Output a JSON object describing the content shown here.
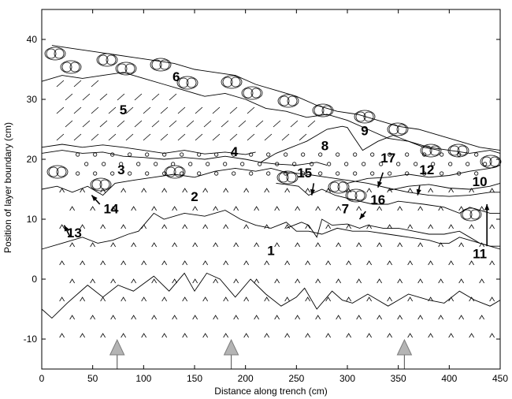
{
  "figure": {
    "xlabel": "Distance along trench (cm)",
    "ylabel": "Position of layer boundary (cm)",
    "x_ticks": [
      "0",
      "50",
      "100",
      "150",
      "200",
      "250",
      "300",
      "350",
      "400",
      "450"
    ],
    "y_ticks": [
      "-10",
      "0",
      "10",
      "20",
      "30",
      "40"
    ],
    "unit_labels": [
      {
        "text": "1",
        "x": 225,
        "y": 4
      },
      {
        "text": "2",
        "x": 150,
        "y": 13
      },
      {
        "text": "3",
        "x": 78,
        "y": 17.5
      },
      {
        "text": "4",
        "x": 189,
        "y": 20.5
      },
      {
        "text": "5",
        "x": 80,
        "y": 27.5
      },
      {
        "text": "6",
        "x": 132,
        "y": 33
      },
      {
        "text": "7",
        "x": 298,
        "y": 11
      },
      {
        "text": "8",
        "x": 278,
        "y": 21.5
      },
      {
        "text": "9",
        "x": 317,
        "y": 24
      },
      {
        "text": "10",
        "x": 430,
        "y": 15.5
      },
      {
        "text": "11",
        "x": 430,
        "y": 3.5
      },
      {
        "text": "12",
        "x": 378,
        "y": 17.5
      },
      {
        "text": "13",
        "x": 32,
        "y": 7
      },
      {
        "text": "14",
        "x": 68,
        "y": 11
      },
      {
        "text": "15",
        "x": 258,
        "y": 17
      },
      {
        "text": "16",
        "x": 330,
        "y": 12.5
      },
      {
        "text": "17",
        "x": 340,
        "y": 19.5
      }
    ],
    "arrows": [
      {
        "from": [
          28,
          7
        ],
        "to": [
          22,
          9
        ],
        "target": "13"
      },
      {
        "from": [
          57,
          12.5
        ],
        "to": [
          49,
          14
        ],
        "target": "14"
      },
      {
        "from": [
          267,
          16
        ],
        "to": [
          265,
          14
        ],
        "target": "15"
      },
      {
        "from": [
          318,
          11.3
        ],
        "to": [
          312,
          10
        ],
        "target": "16"
      },
      {
        "from": [
          335,
          17.8
        ],
        "to": [
          330,
          15.3
        ],
        "target": "17"
      },
      {
        "from": [
          371,
          15.6
        ],
        "to": [
          369,
          14
        ],
        "target": "12"
      },
      {
        "from": [
          437,
          5.5
        ],
        "to": [
          437,
          12.5
        ],
        "target": "11"
      }
    ],
    "markers": [
      {
        "x": 74,
        "symbol": "triangle"
      },
      {
        "x": 186,
        "symbol": "triangle"
      },
      {
        "x": 356,
        "symbol": "triangle"
      }
    ],
    "colors": {
      "axis": "#000000",
      "marker_fill": "#b4b4b4",
      "marker_stroke": "#7c7c7c"
    },
    "boundaries": [
      {
        "name": "base",
        "points": [
          [
            0,
            -5
          ],
          [
            10,
            -6.5
          ],
          [
            25,
            -4
          ],
          [
            45,
            -1
          ],
          [
            60,
            -3
          ],
          [
            75,
            -1
          ],
          [
            90,
            -2
          ],
          [
            110,
            0.5
          ],
          [
            125,
            -2
          ],
          [
            140,
            1
          ],
          [
            150,
            -2
          ],
          [
            162,
            1
          ],
          [
            175,
            0
          ],
          [
            190,
            -3
          ],
          [
            205,
            0
          ],
          [
            220,
            -2.5
          ],
          [
            235,
            -4.5
          ],
          [
            250,
            -3
          ],
          [
            258,
            -1.5
          ],
          [
            270,
            -5
          ],
          [
            285,
            -2
          ],
          [
            295,
            -3.5
          ],
          [
            305,
            -4
          ],
          [
            320,
            -2.5
          ],
          [
            340,
            -4.5
          ],
          [
            360,
            -2.5
          ],
          [
            380,
            -3.5
          ],
          [
            395,
            -4
          ],
          [
            410,
            -2
          ],
          [
            425,
            -3.5
          ],
          [
            440,
            -4.5
          ],
          [
            450,
            -3.5
          ]
        ]
      },
      {
        "name": "b1-2",
        "points": [
          [
            0,
            5
          ],
          [
            20,
            6
          ],
          [
            40,
            7
          ],
          [
            55,
            6
          ],
          [
            70,
            6.5
          ],
          [
            85,
            7.5
          ],
          [
            95,
            8
          ],
          [
            110,
            11
          ],
          [
            120,
            10
          ],
          [
            140,
            11
          ],
          [
            160,
            10.5
          ],
          [
            180,
            11.5
          ],
          [
            195,
            10
          ],
          [
            210,
            9
          ],
          [
            225,
            8.5
          ],
          [
            240,
            9.5
          ],
          [
            250,
            8
          ],
          [
            262,
            8
          ],
          [
            275,
            7.5
          ],
          [
            290,
            8.5
          ],
          [
            305,
            8
          ],
          [
            320,
            8
          ],
          [
            340,
            7.5
          ],
          [
            360,
            7
          ],
          [
            380,
            6.5
          ],
          [
            390,
            6
          ],
          [
            400,
            6
          ],
          [
            410,
            7
          ],
          [
            420,
            6.5
          ],
          [
            440,
            5.5
          ],
          [
            450,
            5
          ]
        ]
      },
      {
        "name": "b2-3",
        "points": [
          [
            0,
            15
          ],
          [
            15,
            15.5
          ],
          [
            30,
            14.5
          ],
          [
            45,
            15.5
          ],
          [
            60,
            14
          ],
          [
            72,
            16
          ],
          [
            90,
            16.5
          ],
          [
            110,
            17
          ],
          [
            130,
            17.5
          ],
          [
            150,
            17
          ],
          [
            170,
            18
          ],
          [
            190,
            18.5
          ],
          [
            210,
            18
          ],
          [
            225,
            18.5
          ],
          [
            240,
            17.8
          ],
          [
            260,
            17.5
          ],
          [
            280,
            17
          ],
          [
            300,
            16.5
          ],
          [
            320,
            16
          ],
          [
            340,
            15.2
          ],
          [
            360,
            14.5
          ],
          [
            380,
            14
          ],
          [
            400,
            13.8
          ],
          [
            420,
            14
          ],
          [
            440,
            14.5
          ],
          [
            450,
            14.5
          ]
        ]
      },
      {
        "name": "b3-4",
        "points": [
          [
            0,
            21
          ],
          [
            20,
            21.5
          ],
          [
            40,
            21
          ],
          [
            60,
            21.2
          ],
          [
            80,
            20.5
          ],
          [
            100,
            20.3
          ],
          [
            120,
            20
          ],
          [
            140,
            20.3
          ],
          [
            160,
            20
          ],
          [
            180,
            20.5
          ],
          [
            200,
            20
          ],
          [
            215,
            19.5
          ],
          [
            230,
            19.2
          ],
          [
            250,
            19
          ],
          [
            270,
            19.5
          ],
          [
            280,
            19
          ]
        ]
      },
      {
        "name": "b4-5",
        "points": [
          [
            0,
            22
          ],
          [
            20,
            22.5
          ],
          [
            40,
            22
          ],
          [
            60,
            22.4
          ],
          [
            80,
            22
          ],
          [
            100,
            21.5
          ],
          [
            120,
            21
          ],
          [
            140,
            21.5
          ],
          [
            160,
            20.9
          ],
          [
            180,
            21.2
          ],
          [
            200,
            20.8
          ],
          [
            210,
            21.2
          ]
        ]
      },
      {
        "name": "b5-6",
        "points": [
          [
            0,
            33
          ],
          [
            20,
            34
          ],
          [
            40,
            33.5
          ],
          [
            60,
            34
          ],
          [
            80,
            34.5
          ],
          [
            100,
            33.5
          ],
          [
            120,
            32.5
          ],
          [
            140,
            31.5
          ],
          [
            160,
            30.5
          ],
          [
            180,
            31
          ],
          [
            200,
            30
          ],
          [
            220,
            28.5
          ],
          [
            240,
            28
          ],
          [
            260,
            27
          ],
          [
            280,
            27.5
          ],
          [
            300,
            26.5
          ],
          [
            320,
            25
          ],
          [
            340,
            23.5
          ],
          [
            360,
            23
          ],
          [
            380,
            22
          ],
          [
            400,
            21.5
          ],
          [
            420,
            21
          ],
          [
            440,
            21.5
          ],
          [
            450,
            21
          ]
        ]
      },
      {
        "name": "top",
        "points": [
          [
            10,
            39
          ],
          [
            30,
            38.5
          ],
          [
            50,
            38
          ],
          [
            70,
            37.5
          ],
          [
            90,
            37
          ],
          [
            110,
            36.5
          ],
          [
            130,
            36
          ],
          [
            150,
            35
          ],
          [
            170,
            34.5
          ],
          [
            190,
            34
          ],
          [
            210,
            32.5
          ],
          [
            230,
            31.5
          ],
          [
            250,
            30.5
          ],
          [
            270,
            29
          ],
          [
            290,
            28
          ],
          [
            310,
            27.5
          ],
          [
            330,
            26.5
          ],
          [
            350,
            25.5
          ],
          [
            370,
            25
          ],
          [
            390,
            24
          ],
          [
            410,
            23
          ],
          [
            430,
            22
          ],
          [
            450,
            21.5
          ]
        ]
      },
      {
        "name": "b8",
        "points": [
          [
            215,
            19.5
          ],
          [
            230,
            21
          ],
          [
            245,
            22
          ],
          [
            260,
            23
          ],
          [
            270,
            24
          ],
          [
            280,
            25
          ],
          [
            295,
            25.5
          ],
          [
            300,
            25.3
          ],
          [
            305,
            24
          ],
          [
            315,
            21.5
          ],
          [
            330,
            23
          ],
          [
            345,
            24
          ],
          [
            360,
            23
          ],
          [
            375,
            22
          ],
          [
            390,
            21.5
          ]
        ]
      },
      {
        "name": "b7-top",
        "points": [
          [
            230,
            16
          ],
          [
            240,
            15.8
          ],
          [
            252,
            15.5
          ],
          [
            262,
            14
          ],
          [
            268,
            14.5
          ],
          [
            275,
            15
          ],
          [
            288,
            14
          ],
          [
            300,
            13.5
          ],
          [
            312,
            13
          ],
          [
            325,
            12.5
          ],
          [
            340,
            12.5
          ],
          [
            350,
            13
          ],
          [
            360,
            12.8
          ],
          [
            375,
            12.5
          ],
          [
            395,
            12
          ],
          [
            410,
            11
          ],
          [
            420,
            12
          ],
          [
            430,
            11.5
          ],
          [
            440,
            11
          ],
          [
            450,
            11
          ]
        ]
      },
      {
        "name": "b7-bottom",
        "points": [
          [
            240,
            8.5
          ],
          [
            255,
            9.5
          ],
          [
            262,
            9
          ],
          [
            270,
            7
          ],
          [
            275,
            10
          ],
          [
            285,
            9
          ],
          [
            300,
            9.2
          ],
          [
            312,
            8.5
          ],
          [
            320,
            9
          ],
          [
            335,
            8.5
          ],
          [
            350,
            8.5
          ],
          [
            365,
            8
          ],
          [
            380,
            7.5
          ],
          [
            395,
            7.5
          ],
          [
            410,
            8
          ],
          [
            420,
            7
          ],
          [
            430,
            6
          ],
          [
            440,
            5.5
          ],
          [
            450,
            5.5
          ]
        ]
      },
      {
        "name": "b10",
        "points": [
          [
            300,
            16
          ],
          [
            320,
            16.8
          ],
          [
            340,
            17
          ],
          [
            360,
            17.5
          ],
          [
            380,
            17
          ],
          [
            400,
            17.3
          ],
          [
            420,
            18
          ],
          [
            440,
            18.5
          ],
          [
            450,
            19
          ]
        ]
      },
      {
        "name": "b12",
        "points": [
          [
            340,
            14.8
          ],
          [
            360,
            15.5
          ],
          [
            380,
            15.8
          ],
          [
            400,
            15.2
          ],
          [
            420,
            15
          ],
          [
            440,
            15.5
          ],
          [
            450,
            16
          ]
        ]
      }
    ]
  }
}
